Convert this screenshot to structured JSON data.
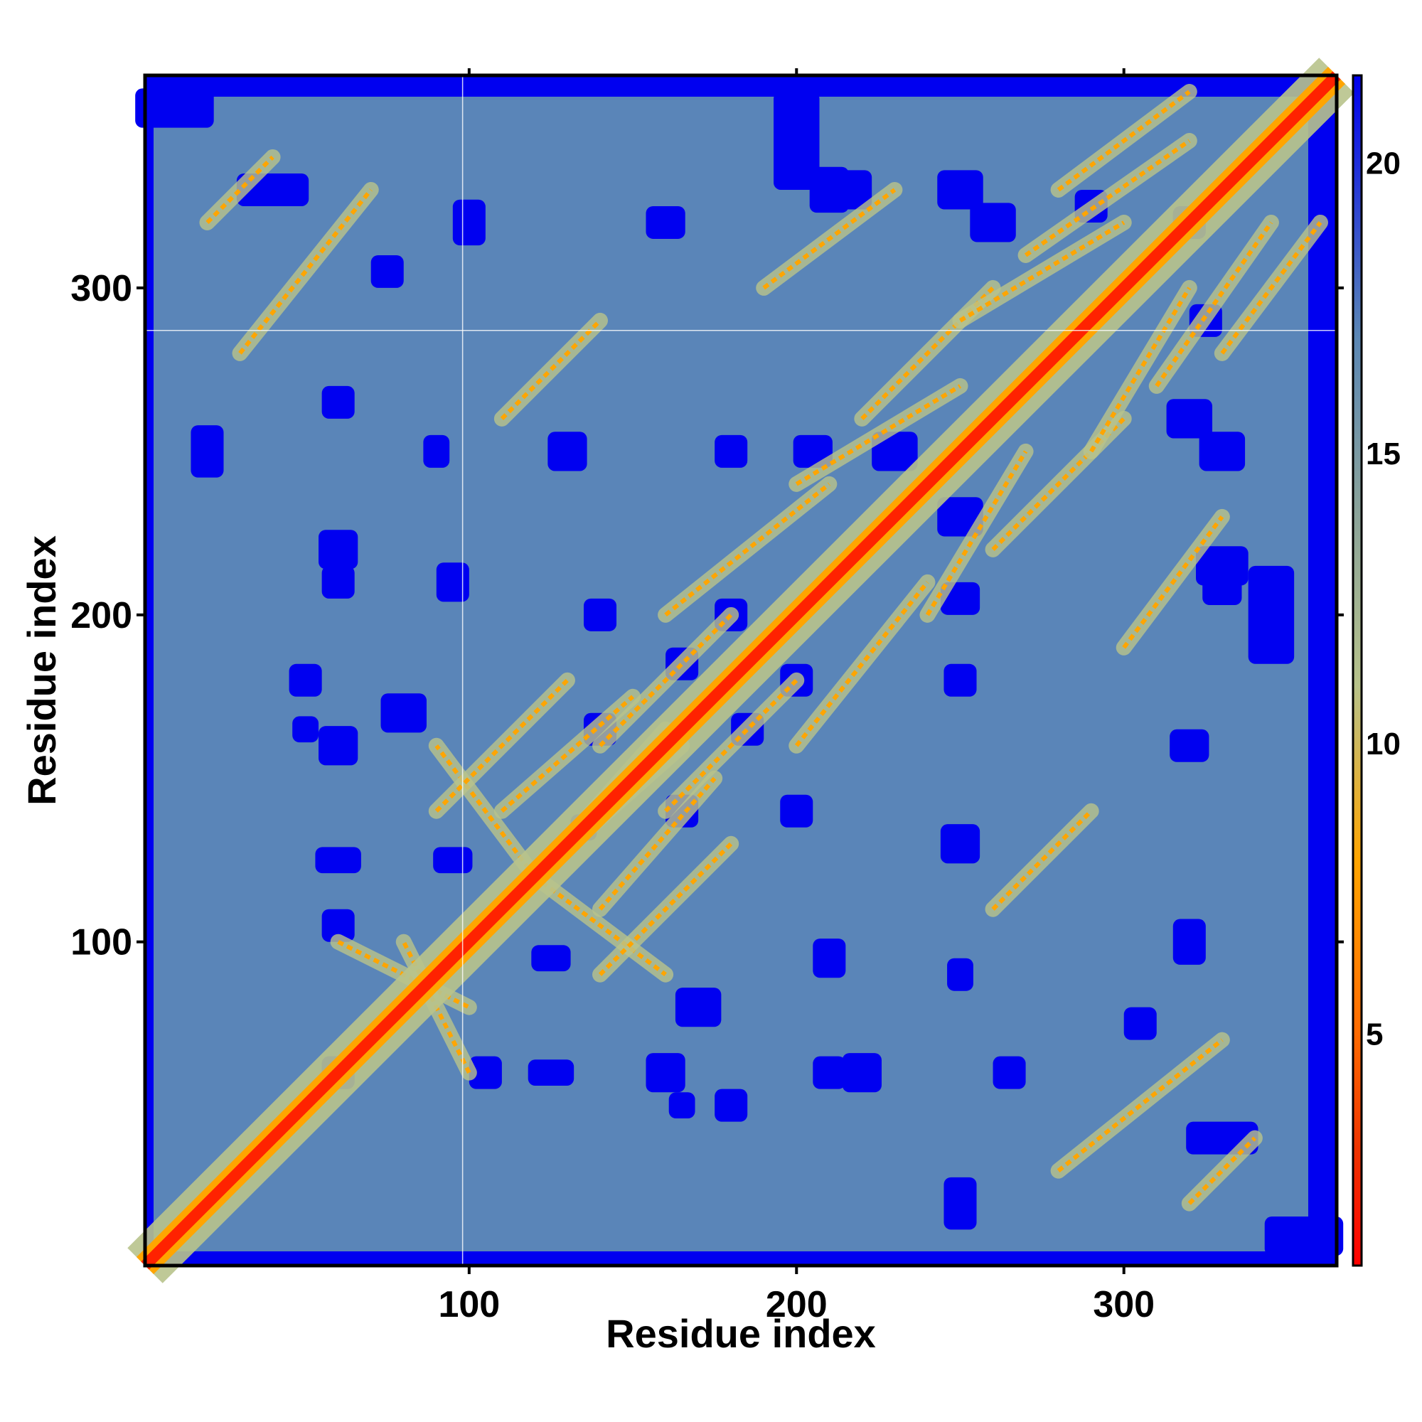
{
  "chart_data": {
    "type": "heatmap",
    "title": "",
    "xlabel": "Residue index",
    "ylabel": "Residue index",
    "x_ticks": [
      100,
      200,
      300
    ],
    "y_ticks": [
      100,
      200,
      300
    ],
    "xlim": [
      1,
      365
    ],
    "ylim": [
      1,
      365
    ],
    "n_residues": 365,
    "colorbar": {
      "ticks": [
        5,
        10,
        15,
        20
      ],
      "range": [
        1,
        21.5
      ],
      "colors": [
        {
          "value": 1,
          "color": "#ff0000"
        },
        {
          "value": 3,
          "color": "#ee3300"
        },
        {
          "value": 5,
          "color": "#ff6a00"
        },
        {
          "value": 8,
          "color": "#ffa500"
        },
        {
          "value": 11,
          "color": "#b7c28a"
        },
        {
          "value": 14,
          "color": "#8aa39a"
        },
        {
          "value": 17,
          "color": "#5b87b5"
        },
        {
          "value": 21.5,
          "color": "#0000ee"
        }
      ]
    },
    "colors": {
      "background_far": "#0000f0",
      "background_mid": "#5a85b8",
      "contact_mid": "#b9c48c",
      "contact_close": "#ffa500",
      "diagonal": "#ff2200"
    },
    "grid": false,
    "legend": "colorbar-right"
  }
}
